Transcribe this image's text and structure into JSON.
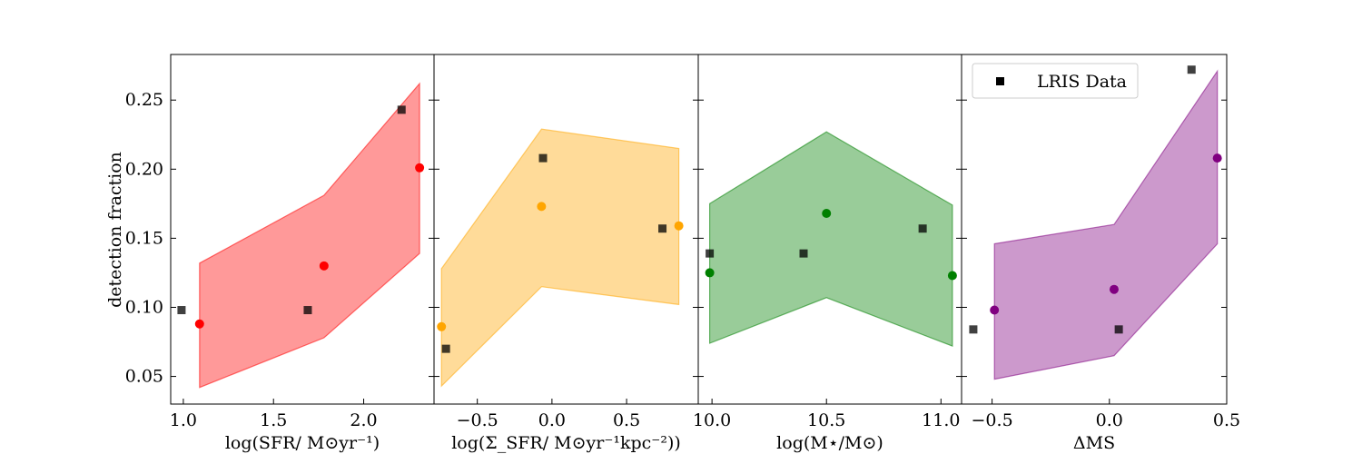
{
  "figure": {
    "ylabel": "detection fraction",
    "ylim": [
      0.03,
      0.283
    ],
    "yticks": [
      0.05,
      0.1,
      0.15,
      0.2,
      0.25
    ],
    "ytick_labels": [
      "0.05",
      "0.10",
      "0.15",
      "0.20",
      "0.25"
    ],
    "legend": {
      "label": "LRIS Data",
      "marker": "square",
      "color": "#000000",
      "location": "upper-left"
    }
  },
  "chart_data": [
    {
      "type": "scatter",
      "id": "sfr",
      "xlabel": "log(SFR/ M⊙yr⁻¹)",
      "xlim": [
        0.93,
        2.39
      ],
      "xticks": [
        1.0,
        1.5,
        2.0
      ],
      "xtick_labels": [
        "1.0",
        "1.5",
        "2.0"
      ],
      "color": "#ff0000",
      "band": {
        "x": [
          1.09,
          1.78,
          2.31
        ],
        "upper": [
          0.132,
          0.181,
          0.262
        ],
        "lower": [
          0.042,
          0.078,
          0.139
        ]
      },
      "model_points": {
        "x": [
          1.09,
          1.78,
          2.31
        ],
        "y": [
          0.088,
          0.13,
          0.201
        ]
      },
      "lris_data": {
        "x": [
          0.99,
          1.69,
          2.21
        ],
        "y": [
          0.098,
          0.098,
          0.243
        ]
      }
    },
    {
      "type": "scatter",
      "id": "sigma_sfr",
      "xlabel": "log(Σ_SFR/ M⊙yr⁻¹kpc⁻²))",
      "xlim": [
        -0.79,
        0.98
      ],
      "xticks": [
        -0.5,
        0.0,
        0.5
      ],
      "xtick_labels": [
        "−0.5",
        "0.0",
        "0.5"
      ],
      "color": "#ffa500",
      "band": {
        "x": [
          -0.74,
          -0.07,
          0.85
        ],
        "upper": [
          0.128,
          0.229,
          0.215
        ],
        "lower": [
          0.043,
          0.115,
          0.102
        ]
      },
      "model_points": {
        "x": [
          -0.74,
          -0.07,
          0.85
        ],
        "y": [
          0.086,
          0.173,
          0.159
        ]
      },
      "lris_data": {
        "x": [
          -0.71,
          -0.06,
          0.74
        ],
        "y": [
          0.07,
          0.208,
          0.157
        ]
      }
    },
    {
      "type": "scatter",
      "id": "mstar",
      "xlabel": "log(M⋆/M⊙)",
      "xlim": [
        9.94,
        11.09
      ],
      "xticks": [
        10.0,
        10.5,
        11.0
      ],
      "xtick_labels": [
        "10.0",
        "10.5",
        "11.0"
      ],
      "color": "#008000",
      "band": {
        "x": [
          9.99,
          10.5,
          11.05
        ],
        "upper": [
          0.175,
          0.227,
          0.174
        ],
        "lower": [
          0.074,
          0.107,
          0.072
        ]
      },
      "model_points": {
        "x": [
          9.99,
          10.5,
          11.05
        ],
        "y": [
          0.125,
          0.168,
          0.123
        ]
      },
      "lris_data": {
        "x": [
          9.99,
          10.4,
          10.92
        ],
        "y": [
          0.139,
          0.139,
          0.157
        ]
      }
    },
    {
      "type": "scatter",
      "id": "delta_ms",
      "xlabel": "ΔMS",
      "xlim": [
        -0.63,
        0.5
      ],
      "xticks": [
        -0.5,
        0.0,
        0.5
      ],
      "xtick_labels": [
        "−0.5",
        "0.0",
        "0.5"
      ],
      "color": "#800080",
      "band": {
        "x": [
          -0.49,
          0.02,
          0.46
        ],
        "upper": [
          0.146,
          0.16,
          0.271
        ],
        "lower": [
          0.048,
          0.065,
          0.146
        ]
      },
      "model_points": {
        "x": [
          -0.49,
          0.02,
          0.46
        ],
        "y": [
          0.098,
          0.113,
          0.208
        ]
      },
      "lris_data": {
        "x": [
          -0.58,
          0.04,
          0.35
        ],
        "y": [
          0.084,
          0.084,
          0.272
        ]
      }
    }
  ]
}
